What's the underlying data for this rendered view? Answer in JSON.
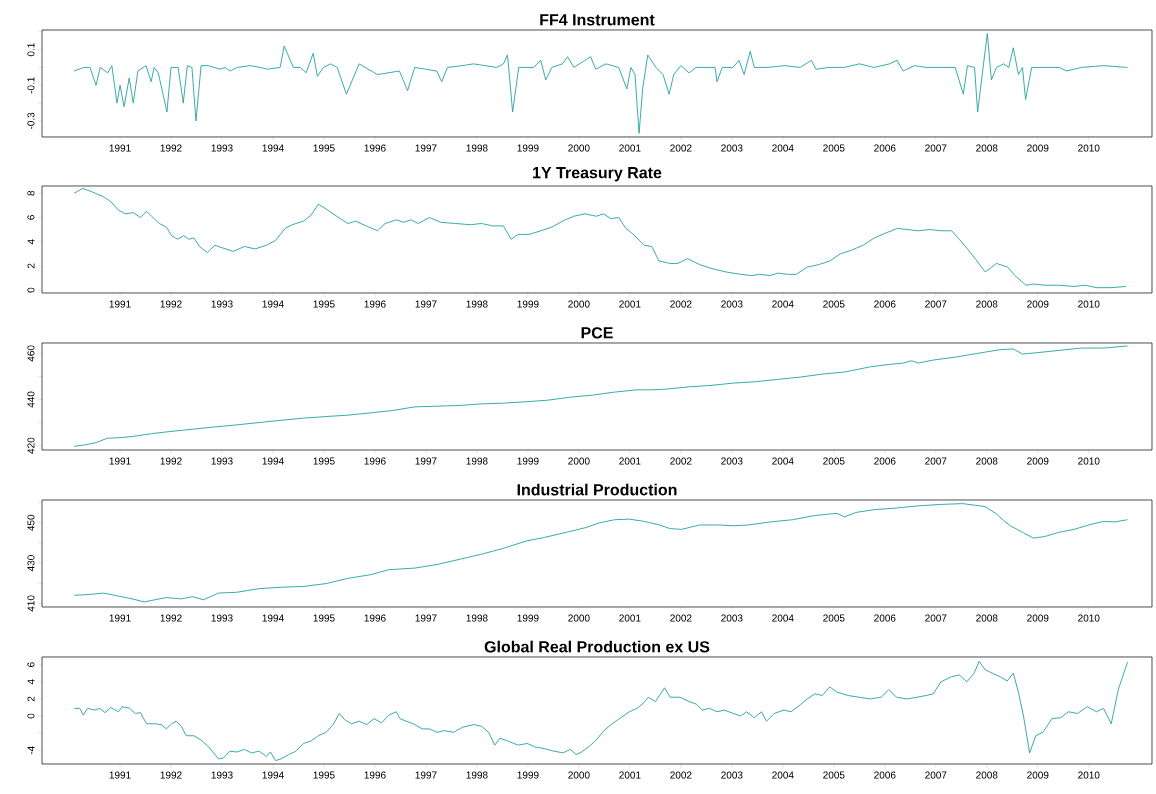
{
  "chart_data": [
    {
      "type": "line",
      "title": "FF4 Instrument",
      "xlim": [
        1989.47,
        2011.24
      ],
      "ylim": [
        -0.39,
        0.21
      ],
      "xticks": [
        1991,
        1992,
        1993,
        1994,
        1995,
        1996,
        1997,
        1998,
        1999,
        2000,
        2001,
        2002,
        2003,
        2004,
        2005,
        2006,
        2007,
        2008,
        2009,
        2010
      ],
      "yticks": [
        -0.3,
        {
          "value": -0.2,
          "label": null
        },
        -0.1,
        {
          "value": 0,
          "label": null
        },
        0.1,
        {
          "value": 0.2,
          "label": null
        }
      ],
      "x": [
        1990.1,
        1990.29,
        1990.41,
        1990.53,
        1990.61,
        1990.76,
        1990.84,
        1990.94,
        1991.0,
        1991.08,
        1991.18,
        1991.26,
        1991.35,
        1991.51,
        1991.61,
        1991.67,
        1991.75,
        1991.92,
        1992.0,
        1992.14,
        1992.24,
        1992.32,
        1992.41,
        1992.49,
        1992.59,
        1992.73,
        1992.96,
        1993.06,
        1993.16,
        1993.3,
        1993.55,
        1993.75,
        1993.89,
        1994.14,
        1994.22,
        1994.4,
        1994.54,
        1994.65,
        1994.79,
        1994.87,
        1994.99,
        1995.13,
        1995.26,
        1995.44,
        1995.69,
        1996.05,
        1996.48,
        1996.64,
        1996.78,
        1997.21,
        1997.31,
        1997.42,
        1997.72,
        1997.93,
        1998.39,
        1998.52,
        1998.6,
        1998.7,
        1998.82,
        1999.11,
        1999.25,
        1999.35,
        1999.47,
        1999.68,
        1999.78,
        1999.9,
        2000.23,
        2000.33,
        2000.53,
        2000.78,
        2000.94,
        2001.02,
        2001.1,
        2001.18,
        2001.25,
        2001.35,
        2001.51,
        2001.65,
        2001.77,
        2001.86,
        2002.0,
        2002.16,
        2002.3,
        2002.67,
        2002.71,
        2002.81,
        2003.02,
        2003.14,
        2003.24,
        2003.36,
        2003.44,
        2003.69,
        2004.04,
        2004.34,
        2004.56,
        2004.65,
        2004.91,
        2005.2,
        2005.5,
        2005.79,
        2006.09,
        2006.24,
        2006.36,
        2006.58,
        2006.81,
        2007.09,
        2007.38,
        2007.54,
        2007.62,
        2007.76,
        2007.82,
        2008.01,
        2008.09,
        2008.19,
        2008.33,
        2008.43,
        2008.52,
        2008.62,
        2008.7,
        2008.76,
        2008.88,
        2009.05,
        2009.43,
        2009.56,
        2009.86,
        2010.29,
        2010.76
      ],
      "series": [
        {
          "color": "#26a0a0",
          "values": [
            -0.02,
            0,
            0,
            -0.1,
            0,
            -0.03,
            0.01,
            -0.2,
            -0.1,
            -0.22,
            -0.06,
            -0.2,
            -0.02,
            0.01,
            -0.08,
            0,
            -0.03,
            -0.25,
            0,
            0,
            -0.2,
            0.01,
            0,
            -0.3,
            0.01,
            0.01,
            -0.01,
            0,
            -0.02,
            0,
            0.01,
            0,
            -0.01,
            0,
            0.12,
            0,
            0,
            -0.03,
            0.08,
            -0.05,
            0,
            0.02,
            0,
            -0.15,
            0.02,
            -0.04,
            -0.02,
            -0.13,
            0,
            -0.02,
            -0.08,
            0,
            0.01,
            0.02,
            0,
            0.02,
            0.07,
            -0.25,
            0,
            0,
            0.04,
            -0.07,
            0,
            0.02,
            0.06,
            0,
            0.06,
            -0.01,
            0.02,
            0,
            -0.12,
            0,
            -0.04,
            -0.37,
            -0.12,
            0.07,
            0,
            -0.04,
            -0.15,
            -0.04,
            0.01,
            -0.03,
            0,
            0,
            -0.08,
            0,
            0,
            0.04,
            -0.04,
            0.09,
            0,
            0,
            0.01,
            0,
            0.04,
            -0.01,
            0,
            0,
            0.02,
            0,
            0.02,
            0.04,
            -0.02,
            0.01,
            0,
            0,
            0,
            -0.15,
            0.01,
            0,
            -0.25,
            0.19,
            -0.07,
            0,
            0.02,
            0,
            0.11,
            -0.04,
            0,
            -0.18,
            0,
            0,
            0,
            -0.02,
            0,
            0.01,
            0
          ]
        }
      ]
    },
    {
      "type": "line",
      "title": "1Y Treasury Rate",
      "xlim": [
        1989.47,
        2011.24
      ],
      "ylim": [
        -0.24,
        8.6
      ],
      "xticks": [
        1991,
        1992,
        1993,
        1994,
        1995,
        1996,
        1997,
        1998,
        1999,
        2000,
        2001,
        2002,
        2003,
        2004,
        2005,
        2006,
        2007,
        2008,
        2009,
        2010
      ],
      "yticks": [
        0,
        2,
        4,
        6,
        8
      ],
      "x": [
        1990.1,
        1990.27,
        1990.46,
        1990.68,
        1990.82,
        1990.97,
        1991.11,
        1991.26,
        1991.4,
        1991.52,
        1991.62,
        1991.77,
        1991.91,
        1992.01,
        1992.13,
        1992.25,
        1992.35,
        1992.45,
        1992.56,
        1992.71,
        1992.86,
        1993.0,
        1993.22,
        1993.44,
        1993.65,
        1993.87,
        1994.05,
        1994.24,
        1994.38,
        1994.6,
        1994.75,
        1994.89,
        1995.04,
        1995.25,
        1995.47,
        1995.62,
        1995.83,
        1996.05,
        1996.2,
        1996.42,
        1996.56,
        1996.71,
        1996.85,
        1997.07,
        1997.29,
        1997.58,
        1997.87,
        1998.09,
        1998.31,
        1998.52,
        1998.67,
        1998.81,
        1999.03,
        1999.25,
        1999.47,
        1999.68,
        1999.9,
        2000.12,
        2000.34,
        2000.48,
        2000.63,
        2000.78,
        2000.92,
        2001.07,
        2001.28,
        2001.43,
        2001.57,
        2001.79,
        2001.94,
        2002.13,
        2002.37,
        2002.59,
        2002.88,
        2003.17,
        2003.39,
        2003.54,
        2003.75,
        2003.9,
        2004.09,
        2004.26,
        2004.48,
        2004.7,
        2004.92,
        2005.13,
        2005.35,
        2005.57,
        2005.79,
        2006.01,
        2006.25,
        2006.44,
        2006.66,
        2006.88,
        2007.1,
        2007.31,
        2007.46,
        2007.6,
        2007.79,
        2007.97,
        2008.19,
        2008.41,
        2008.55,
        2008.77,
        2008.91,
        2009.13,
        2009.42,
        2009.71,
        2009.93,
        2010.15,
        2010.44,
        2010.73
      ],
      "series": [
        {
          "color": "#26a0a0",
          "values": [
            8.0,
            8.4,
            8.1,
            7.7,
            7.3,
            6.6,
            6.3,
            6.4,
            6.0,
            6.5,
            6.1,
            5.5,
            5.2,
            4.5,
            4.2,
            4.5,
            4.2,
            4.3,
            3.6,
            3.1,
            3.7,
            3.5,
            3.2,
            3.6,
            3.4,
            3.7,
            4.1,
            5.1,
            5.4,
            5.7,
            6.2,
            7.1,
            6.7,
            6.1,
            5.5,
            5.7,
            5.3,
            4.9,
            5.5,
            5.8,
            5.6,
            5.8,
            5.5,
            6.0,
            5.6,
            5.5,
            5.4,
            5.5,
            5.3,
            5.3,
            4.2,
            4.6,
            4.6,
            4.9,
            5.2,
            5.7,
            6.1,
            6.3,
            6.1,
            6.3,
            5.9,
            6.0,
            5.1,
            4.6,
            3.7,
            3.6,
            2.4,
            2.2,
            2.2,
            2.6,
            2.1,
            1.8,
            1.5,
            1.3,
            1.2,
            1.3,
            1.2,
            1.4,
            1.3,
            1.3,
            1.9,
            2.1,
            2.4,
            3.0,
            3.3,
            3.7,
            4.3,
            4.7,
            5.1,
            5.0,
            4.9,
            5.0,
            4.9,
            4.9,
            4.2,
            3.5,
            2.5,
            1.5,
            2.2,
            1.9,
            1.2,
            0.4,
            0.5,
            0.4,
            0.4,
            0.3,
            0.4,
            0.2,
            0.2,
            0.3
          ]
        }
      ]
    },
    {
      "type": "line",
      "title": "PCE",
      "xlim": [
        1989.47,
        2011.24
      ],
      "ylim": [
        418.1,
        464.5
      ],
      "xticks": [
        1991,
        1992,
        1993,
        1994,
        1995,
        1996,
        1997,
        1998,
        1999,
        2000,
        2001,
        2002,
        2003,
        2004,
        2005,
        2006,
        2007,
        2008,
        2009,
        2010
      ],
      "yticks": [
        420,
        {
          "value": 430,
          "label": null
        },
        440,
        {
          "value": 450,
          "label": null
        },
        460
      ],
      "x": [
        1990.1,
        1990.31,
        1990.53,
        1990.75,
        1991.04,
        1991.33,
        1991.62,
        1991.98,
        1992.42,
        1992.86,
        1993.29,
        1993.73,
        1994.16,
        1994.6,
        1995.04,
        1995.47,
        1995.91,
        1996.34,
        1996.78,
        1997.22,
        1997.65,
        1998.09,
        1998.52,
        1998.96,
        1999.39,
        1999.83,
        2000.27,
        2000.7,
        2001.14,
        2001.43,
        2001.72,
        2002.16,
        2002.59,
        2003.03,
        2003.46,
        2003.9,
        2004.34,
        2004.77,
        2005.21,
        2005.5,
        2005.72,
        2006.08,
        2006.37,
        2006.52,
        2006.66,
        2006.95,
        2007.39,
        2007.82,
        2008.26,
        2008.52,
        2008.7,
        2008.99,
        2009.42,
        2009.86,
        2010.29,
        2010.76
      ],
      "series": [
        {
          "color": "#26a0a0",
          "values": [
            419.7,
            420.3,
            421.3,
            423.2,
            423.5,
            424.2,
            425.2,
            426.1,
            427.1,
            428.1,
            429.0,
            430.0,
            431.0,
            431.9,
            432.6,
            433.2,
            434.2,
            435.2,
            436.8,
            437.1,
            437.4,
            438.1,
            438.4,
            439.0,
            439.7,
            441.0,
            441.9,
            443.2,
            444.2,
            444.2,
            444.5,
            445.5,
            446.1,
            447.1,
            447.7,
            448.7,
            449.7,
            451.0,
            451.9,
            453.2,
            454.2,
            455.2,
            455.8,
            456.8,
            455.8,
            457.1,
            458.4,
            460.0,
            461.6,
            461.9,
            459.7,
            460.3,
            461.3,
            462.3,
            462.3,
            463.2
          ]
        }
      ]
    },
    {
      "type": "line",
      "title": "Industrial Production",
      "xlim": [
        1989.47,
        2011.24
      ],
      "ylim": [
        408.2,
        461.3
      ],
      "xticks": [
        1991,
        1992,
        1993,
        1994,
        1995,
        1996,
        1997,
        1998,
        1999,
        2000,
        2001,
        2002,
        2003,
        2004,
        2005,
        2006,
        2007,
        2008,
        2009,
        2010
      ],
      "yticks": [
        410,
        {
          "value": 420,
          "label": null
        },
        430,
        {
          "value": 440,
          "label": null
        },
        450,
        {
          "value": 460,
          "label": null
        }
      ],
      "x": [
        1990.1,
        1990.39,
        1990.68,
        1990.97,
        1991.19,
        1991.48,
        1991.69,
        1991.91,
        1992.2,
        1992.42,
        1992.64,
        1992.93,
        1993.29,
        1993.73,
        1994.16,
        1994.6,
        1995.04,
        1995.47,
        1995.91,
        1996.27,
        1996.78,
        1997.22,
        1997.65,
        1998.09,
        1998.52,
        1998.96,
        1999.32,
        1999.76,
        2000.12,
        2000.41,
        2000.7,
        2000.99,
        2001.28,
        2001.58,
        2001.79,
        2002.01,
        2002.37,
        2002.74,
        2003.03,
        2003.32,
        2003.75,
        2004.19,
        2004.63,
        2005.06,
        2005.21,
        2005.43,
        2005.79,
        2006.23,
        2006.66,
        2007.1,
        2007.53,
        2007.97,
        2008.19,
        2008.33,
        2008.48,
        2008.7,
        2008.91,
        2009.13,
        2009.42,
        2009.71,
        2010.0,
        2010.29,
        2010.51,
        2010.76
      ],
      "series": [
        {
          "color": "#26a0a0",
          "values": [
            414.0,
            414.4,
            415.1,
            413.6,
            412.5,
            410.7,
            411.8,
            412.9,
            412.2,
            413.3,
            411.8,
            415.1,
            415.5,
            417.3,
            418.0,
            418.4,
            419.8,
            422.4,
            424.2,
            426.7,
            427.5,
            429.3,
            431.8,
            434.4,
            437.3,
            440.9,
            442.7,
            445.3,
            447.5,
            450.0,
            451.5,
            451.8,
            450.7,
            448.9,
            447.1,
            446.7,
            448.9,
            448.9,
            448.5,
            448.9,
            450.4,
            451.5,
            453.6,
            454.7,
            452.9,
            455.1,
            456.5,
            457.3,
            458.4,
            459.1,
            459.5,
            458.0,
            454.4,
            451.1,
            448.2,
            445.3,
            442.4,
            443.1,
            445.3,
            446.7,
            448.9,
            450.7,
            450.4,
            451.5
          ]
        }
      ]
    },
    {
      "type": "line",
      "title": "Global Real Production ex US",
      "xlim": [
        1989.47,
        2011.24
      ],
      "ylim": [
        -5.6,
        6.9
      ],
      "xticks": [
        1991,
        1992,
        1993,
        1994,
        1995,
        1996,
        1997,
        1998,
        1999,
        2000,
        2001,
        2002,
        2003,
        2004,
        2005,
        2006,
        2007,
        2008,
        2009,
        2010
      ],
      "yticks": [
        -4,
        {
          "value": -2,
          "label": null
        },
        0,
        2,
        4,
        6
      ],
      "x": [
        1990.1,
        1990.21,
        1990.28,
        1990.36,
        1990.5,
        1990.6,
        1990.71,
        1990.82,
        1990.97,
        1991.04,
        1991.19,
        1991.3,
        1991.4,
        1991.52,
        1991.69,
        1991.81,
        1991.91,
        1992.01,
        1992.1,
        1992.2,
        1992.3,
        1992.45,
        1992.59,
        1992.74,
        1992.93,
        1993.03,
        1993.15,
        1993.29,
        1993.44,
        1993.58,
        1993.73,
        1993.87,
        1993.95,
        1994.05,
        1994.16,
        1994.31,
        1994.45,
        1994.6,
        1994.75,
        1994.89,
        1995.04,
        1995.18,
        1995.3,
        1995.4,
        1995.54,
        1995.69,
        1995.84,
        1995.98,
        1996.13,
        1996.27,
        1996.42,
        1996.49,
        1996.61,
        1996.75,
        1996.93,
        1997.07,
        1997.22,
        1997.36,
        1997.54,
        1997.72,
        1997.94,
        1998.09,
        1998.23,
        1998.35,
        1998.45,
        1998.6,
        1998.81,
        1998.99,
        1999.13,
        1999.32,
        1999.51,
        1999.69,
        1999.83,
        1999.95,
        2000.05,
        2000.19,
        2000.34,
        2000.49,
        2000.63,
        2000.82,
        2000.99,
        2001.14,
        2001.28,
        2001.36,
        2001.5,
        2001.58,
        2001.68,
        2001.79,
        2001.98,
        2002.16,
        2002.3,
        2002.42,
        2002.56,
        2002.71,
        2002.85,
        2003.03,
        2003.17,
        2003.29,
        2003.44,
        2003.58,
        2003.68,
        2003.83,
        2004.02,
        2004.16,
        2004.34,
        2004.48,
        2004.63,
        2004.77,
        2004.92,
        2005.06,
        2005.28,
        2005.5,
        2005.72,
        2005.93,
        2006.08,
        2006.23,
        2006.44,
        2006.63,
        2006.81,
        2006.95,
        2007.1,
        2007.31,
        2007.46,
        2007.61,
        2007.75,
        2007.85,
        2007.97,
        2008.11,
        2008.26,
        2008.4,
        2008.52,
        2008.62,
        2008.72,
        2008.84,
        2008.96,
        2009.1,
        2009.28,
        2009.45,
        2009.6,
        2009.78,
        2009.97,
        2010.15,
        2010.29,
        2010.44,
        2010.58,
        2010.76
      ],
      "series": [
        {
          "color": "#26a0a0",
          "values": [
            0.9,
            0.9,
            0.1,
            0.9,
            0.7,
            0.9,
            0.4,
            1.0,
            0.5,
            1.1,
            0.9,
            0.3,
            0.4,
            -0.9,
            -0.9,
            -1.0,
            -1.5,
            -0.9,
            -0.6,
            -1.2,
            -2.3,
            -2.3,
            -2.8,
            -3.6,
            -5.0,
            -4.9,
            -4.1,
            -4.2,
            -3.9,
            -4.3,
            -4.1,
            -4.7,
            -4.2,
            -5.2,
            -5.0,
            -4.5,
            -4.1,
            -3.2,
            -2.9,
            -2.3,
            -1.9,
            -1.0,
            0.3,
            -0.4,
            -0.9,
            -0.6,
            -1.0,
            -0.3,
            -0.8,
            0.1,
            0.5,
            -0.3,
            -0.6,
            -0.9,
            -1.5,
            -1.5,
            -1.9,
            -1.7,
            -1.9,
            -1.3,
            -1.0,
            -1.2,
            -1.9,
            -3.4,
            -2.6,
            -2.9,
            -3.4,
            -3.2,
            -3.6,
            -3.8,
            -4.1,
            -4.3,
            -3.9,
            -4.5,
            -4.2,
            -3.6,
            -2.8,
            -1.7,
            -1.0,
            -0.2,
            0.5,
            0.9,
            1.6,
            2.2,
            1.7,
            2.4,
            3.3,
            2.2,
            2.2,
            1.7,
            1.4,
            0.7,
            0.9,
            0.5,
            0.7,
            0.3,
            0,
            0.5,
            -0.2,
            0.5,
            -0.6,
            0.3,
            0.7,
            0.5,
            1.3,
            2.0,
            2.6,
            2.4,
            3.4,
            2.8,
            2.4,
            2.2,
            2.0,
            2.2,
            3.1,
            2.2,
            2.0,
            2.2,
            2.4,
            2.6,
            4.0,
            4.6,
            4.8,
            4.0,
            5.0,
            6.4,
            5.4,
            5.0,
            4.6,
            4.1,
            5.0,
            2.8,
            0,
            -4.3,
            -2.3,
            -1.9,
            -0.3,
            -0.2,
            0.5,
            0.3,
            1.1,
            0.5,
            0.9,
            -0.9,
            3.1,
            6.3
          ]
        }
      ]
    }
  ]
}
